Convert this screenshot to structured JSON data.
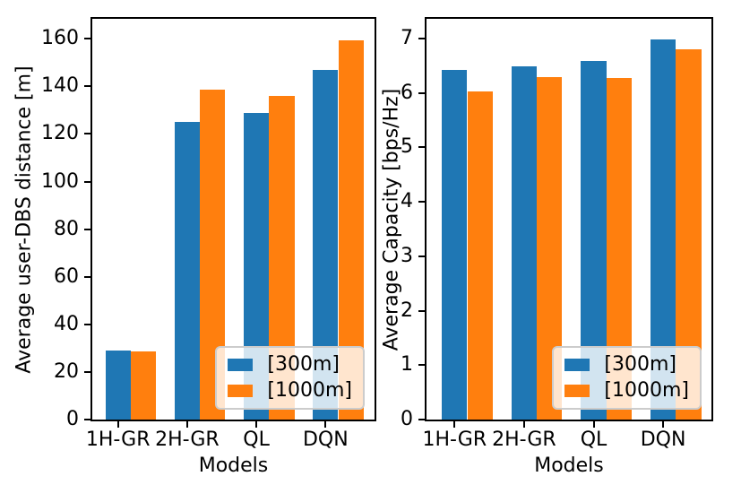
{
  "figure": {
    "background": "#ffffff",
    "text_color": "#000000",
    "accent_colors": {
      "series_300m": "#1f77b4",
      "series_1000m": "#ff7f0e"
    }
  },
  "chart_data": [
    {
      "type": "bar",
      "title": "",
      "xlabel": "Models",
      "ylabel": "Average user-DBS distance [m]",
      "categories": [
        "1H-GR",
        "2H-GR",
        "QL",
        "DQN"
      ],
      "series": [
        {
          "name": "[300m]",
          "color": "#1f77b4",
          "values": [
            29,
            125,
            129,
            147
          ]
        },
        {
          "name": "[1000m]",
          "color": "#ff7f0e",
          "values": [
            28.5,
            138.5,
            136,
            159.5
          ]
        }
      ],
      "ylim": [
        0,
        168.4
      ],
      "yticks": [
        0,
        20,
        40,
        60,
        80,
        100,
        120,
        140,
        160
      ],
      "grid": false,
      "legend_position": "lower right"
    },
    {
      "type": "bar",
      "title": "",
      "xlabel": "Models",
      "ylabel": "Average Capacity [bps/Hz]",
      "categories": [
        "1H-GR",
        "2H-GR",
        "QL",
        "DQN"
      ],
      "series": [
        {
          "name": "[300m]",
          "color": "#1f77b4",
          "values": [
            6.42,
            6.49,
            6.58,
            6.98
          ]
        },
        {
          "name": "[1000m]",
          "color": "#ff7f0e",
          "values": [
            6.02,
            6.29,
            6.27,
            6.8
          ]
        }
      ],
      "ylim": [
        0,
        7.36
      ],
      "yticks": [
        0,
        1,
        2,
        3,
        4,
        5,
        6,
        7
      ],
      "grid": false,
      "legend_position": "lower right"
    }
  ]
}
